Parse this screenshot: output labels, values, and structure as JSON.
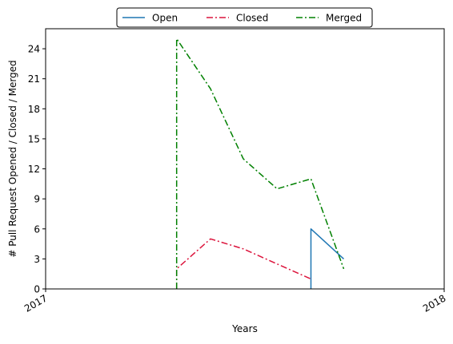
{
  "chart_data": {
    "type": "line",
    "xlabel": "Years",
    "ylabel": "# Pull Request Opened / Closed / Merged",
    "x_ticks": [
      "2017",
      "2018"
    ],
    "y_ticks": [
      0,
      3,
      6,
      9,
      12,
      15,
      18,
      21,
      24
    ],
    "xlim": [
      "2017-01-01",
      "2018-01-01"
    ],
    "ylim": [
      0,
      26
    ],
    "grid": false,
    "legend_position": "top-center",
    "series": [
      {
        "name": "Open",
        "color": "#1f77b4",
        "style": "solid",
        "points": [
          [
            "2017-09-01",
            0
          ],
          [
            "2017-09-01",
            6
          ],
          [
            "2017-10-01",
            3
          ]
        ]
      },
      {
        "name": "Closed",
        "color": "#dc143c",
        "style": "dashdot",
        "points": [
          [
            "2017-05-01",
            0
          ],
          [
            "2017-05-01",
            2
          ],
          [
            "2017-06-01",
            5
          ],
          [
            "2017-07-01",
            4
          ],
          [
            "2017-08-01",
            2.5
          ],
          [
            "2017-09-01",
            1
          ]
        ]
      },
      {
        "name": "Merged",
        "color": "#008000",
        "style": "dashdot",
        "points": [
          [
            "2017-05-01",
            0
          ],
          [
            "2017-05-01",
            25
          ],
          [
            "2017-06-01",
            20
          ],
          [
            "2017-07-01",
            13
          ],
          [
            "2017-08-01",
            10
          ],
          [
            "2017-09-01",
            11
          ],
          [
            "2017-10-01",
            2
          ]
        ]
      }
    ]
  }
}
